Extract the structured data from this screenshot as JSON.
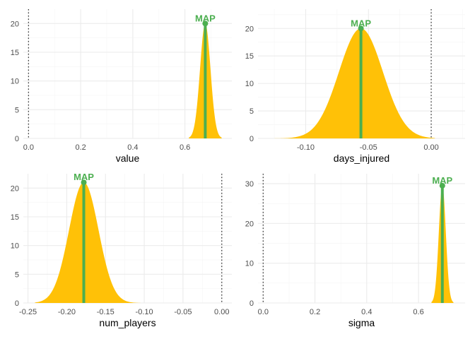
{
  "colors": {
    "density_fill": "#FFC107",
    "map_color": "#4CAF50",
    "grid_major": "#EBEBEB",
    "grid_minor": "#F5F5F5",
    "reference_line": "#333333"
  },
  "chart_data": [
    {
      "type": "area",
      "title": "",
      "xlabel": "value",
      "ylabel": "",
      "xlim": [
        -0.02,
        0.78
      ],
      "ylim": [
        0,
        22.5
      ],
      "x_ticks": [
        0.0,
        0.2,
        0.4,
        0.6
      ],
      "x_tick_labels": [
        "0.0",
        "0.2",
        "0.4",
        "0.6"
      ],
      "y_ticks": [
        0,
        5,
        10,
        15,
        20
      ],
      "y_tick_labels": [
        "0",
        "5",
        "10",
        "15",
        "20"
      ],
      "density": {
        "kind": "gaussian",
        "mean": 0.678,
        "sd": 0.02,
        "from": 0.615,
        "to": 0.741,
        "peak": 20.0
      },
      "map": {
        "x": 0.678,
        "y": 20.0,
        "label": "MAP"
      },
      "reference_line_x": 0.0,
      "grid": true
    },
    {
      "type": "area",
      "title": "",
      "xlabel": "days_injured",
      "ylabel": "",
      "xlim": [
        -0.138,
        0.027
      ],
      "ylim": [
        0,
        23.5
      ],
      "x_ticks": [
        -0.1,
        -0.05,
        0.0
      ],
      "x_tick_labels": [
        "-0.10",
        "-0.05",
        "0.00"
      ],
      "y_ticks": [
        0,
        5,
        10,
        15,
        20
      ],
      "y_tick_labels": [
        "0",
        "5",
        "10",
        "15",
        "20"
      ],
      "density": {
        "kind": "gaussian",
        "mean": -0.056,
        "sd": 0.0175,
        "from": -0.126,
        "to": 0.003,
        "peak": 20.0
      },
      "map": {
        "x": -0.056,
        "y": 20.0,
        "label": "MAP"
      },
      "reference_line_x": 0.0,
      "grid": true
    },
    {
      "type": "area",
      "title": "",
      "xlabel": "num_players",
      "ylabel": "",
      "xlim": [
        -0.256,
        0.013
      ],
      "ylim": [
        0,
        22.5
      ],
      "x_ticks": [
        -0.25,
        -0.2,
        -0.15,
        -0.1,
        -0.05,
        0.0
      ],
      "x_tick_labels": [
        "-0.25",
        "-0.20",
        "-0.15",
        "-0.10",
        "-0.05",
        "0.00"
      ],
      "y_ticks": [
        0,
        5,
        10,
        15,
        20
      ],
      "y_tick_labels": [
        "0",
        "5",
        "10",
        "15",
        "20"
      ],
      "density": {
        "kind": "gaussian",
        "mean": -0.178,
        "sd": 0.019,
        "from": -0.241,
        "to": -0.105,
        "peak": 21.0
      },
      "map": {
        "x": -0.178,
        "y": 21.0,
        "label": "MAP"
      },
      "reference_line_x": 0.0,
      "grid": true
    },
    {
      "type": "area",
      "title": "",
      "xlabel": "sigma",
      "ylabel": "",
      "xlim": [
        -0.02,
        0.78
      ],
      "ylim": [
        0,
        32.5
      ],
      "x_ticks": [
        0.0,
        0.2,
        0.4,
        0.6
      ],
      "x_tick_labels": [
        "0.0",
        "0.2",
        "0.4",
        "0.6"
      ],
      "y_ticks": [
        0,
        10,
        20,
        30
      ],
      "y_tick_labels": [
        "0",
        "10",
        "20",
        "30"
      ],
      "density": {
        "kind": "gaussian",
        "mean": 0.692,
        "sd": 0.0135,
        "from": 0.65,
        "to": 0.735,
        "peak": 29.5
      },
      "map": {
        "x": 0.692,
        "y": 29.5,
        "label": "MAP"
      },
      "reference_line_x": 0.0,
      "grid": true
    }
  ]
}
